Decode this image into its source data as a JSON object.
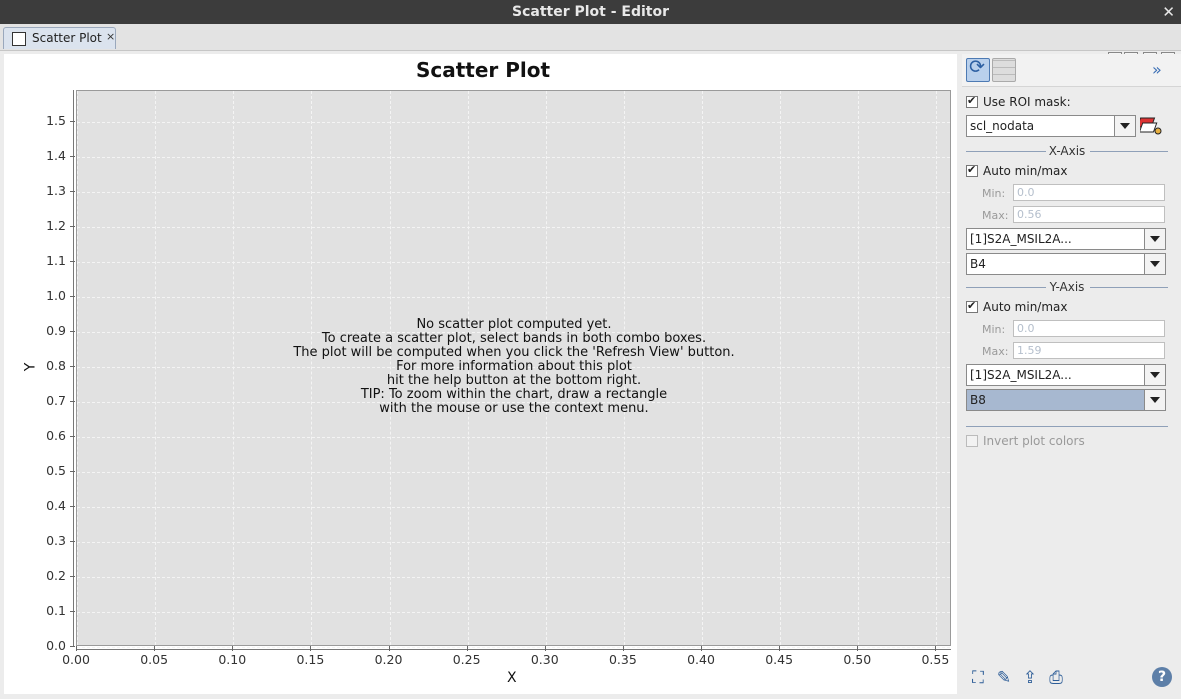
{
  "window": {
    "title": "Scatter Plot - Editor"
  },
  "tab": {
    "label": "Scatter Plot"
  },
  "chart_data": {
    "type": "scatter",
    "title": "Scatter Plot",
    "xlabel": "X",
    "ylabel": "Y",
    "xlim": [
      0.0,
      0.56
    ],
    "ylim": [
      0.0,
      1.59
    ],
    "x_ticks": [
      "0.00",
      "0.05",
      "0.10",
      "0.15",
      "0.20",
      "0.25",
      "0.30",
      "0.35",
      "0.40",
      "0.45",
      "0.50",
      "0.55"
    ],
    "y_ticks": [
      "0.0",
      "0.1",
      "0.2",
      "0.3",
      "0.4",
      "0.5",
      "0.6",
      "0.7",
      "0.8",
      "0.9",
      "1.0",
      "1.1",
      "1.2",
      "1.3",
      "1.4",
      "1.5"
    ],
    "grid": true,
    "series": []
  },
  "message": [
    "No scatter plot computed yet.",
    "To create a scatter plot, select bands in both combo boxes.",
    "The plot will be computed when you click the 'Refresh View' button.",
    "For more information about this plot",
    "hit the help button at the bottom right.",
    "TIP: To zoom within the chart, draw a rectangle",
    "with the mouse or use the context menu."
  ],
  "side": {
    "use_roi_label": "Use ROI mask:",
    "roi_mask": "scl_nodata",
    "x_axis": {
      "title": "X-Axis",
      "auto_label": "Auto min/max",
      "min_label": "Min:",
      "max_label": "Max:",
      "min": "0.0",
      "max": "0.56",
      "product": "[1]S2A_MSIL2A...",
      "band": "B4"
    },
    "y_axis": {
      "title": "Y-Axis",
      "auto_label": "Auto min/max",
      "min_label": "Min:",
      "max_label": "Max:",
      "min": "0.0",
      "max": "1.59",
      "product": "[1]S2A_MSIL2A...",
      "band": "B8"
    },
    "invert_label": "Invert plot colors"
  }
}
